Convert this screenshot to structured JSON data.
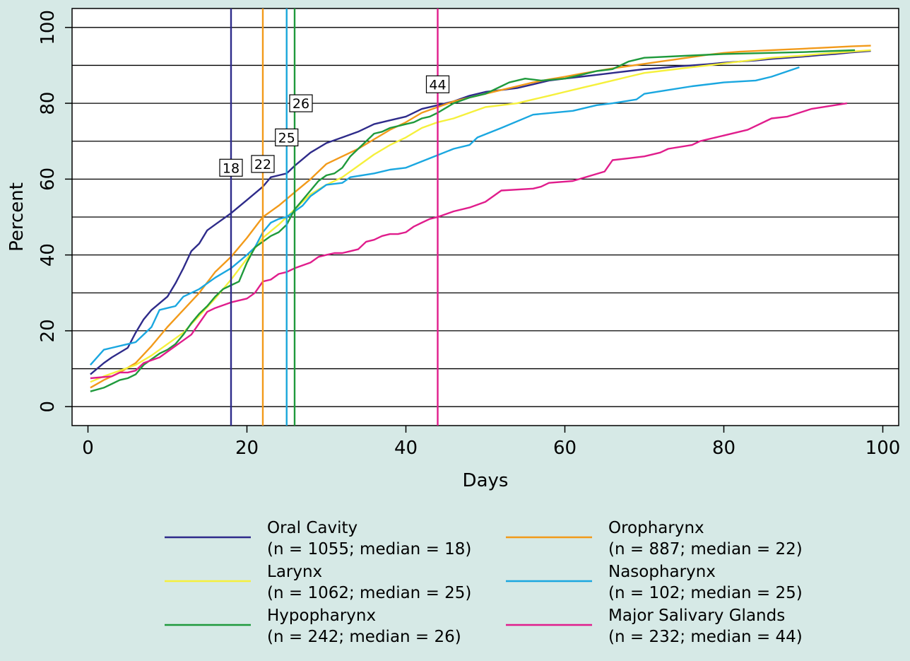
{
  "chart_data": {
    "type": "line",
    "title": "",
    "xlabel": "Days",
    "ylabel": "Percent",
    "xlim": [
      -2,
      102
    ],
    "ylim": [
      -5,
      105
    ],
    "xticks": [
      0,
      20,
      40,
      60,
      80,
      100
    ],
    "yticks": [
      0,
      20,
      40,
      60,
      80,
      100
    ],
    "hgrid": [
      0,
      10,
      20,
      30,
      40,
      50,
      60,
      70,
      80,
      90,
      100
    ],
    "colors": {
      "background": "#d6e9e6",
      "plot_background": "#ffffff"
    },
    "legend_placement": "bottom",
    "series": [
      {
        "name": "Oral Cavity",
        "detail": "(n = 1055; median = 18)",
        "median": 18,
        "median_label": "18",
        "color": "#2e2b8a",
        "x": [
          0.3,
          2,
          3,
          5,
          6,
          7,
          8,
          10,
          11,
          12,
          13,
          14,
          15,
          16,
          18,
          20,
          22,
          23,
          24,
          25,
          26,
          28,
          30,
          32,
          34,
          36,
          38,
          40,
          42,
          44,
          46,
          48,
          50,
          52,
          54,
          56,
          58,
          60,
          62,
          64,
          66,
          68,
          70,
          72,
          74,
          76,
          78,
          80,
          82,
          84,
          86,
          88,
          90,
          92,
          94,
          96,
          98.5
        ],
        "y": [
          8.5,
          11.5,
          13,
          15.5,
          19.5,
          23,
          25.5,
          29,
          32.5,
          36.5,
          41,
          43,
          46.5,
          48,
          51,
          54.5,
          58,
          60.5,
          61,
          61.5,
          63.5,
          67,
          69.5,
          71,
          72.5,
          74.5,
          75.5,
          76.5,
          78.5,
          79.5,
          80.5,
          82,
          83,
          83.5,
          84,
          85,
          86,
          86.5,
          87,
          87.5,
          88,
          88.5,
          89,
          89.3,
          89.7,
          90,
          90.3,
          90.7,
          91,
          91.3,
          91.7,
          92,
          92.3,
          92.7,
          93,
          93.4,
          93.8
        ]
      },
      {
        "name": "Oropharynx",
        "detail": "(n = 887; median = 22)",
        "median": 22,
        "median_label": "22",
        "color": "#f29a1a",
        "x": [
          0.3,
          2,
          4,
          6,
          8,
          10,
          12,
          14,
          16,
          18,
          20,
          22,
          24,
          26,
          28,
          30,
          32,
          34,
          36,
          38,
          40,
          42,
          44,
          46,
          48,
          50,
          52,
          54,
          56,
          58,
          60,
          62,
          64,
          66,
          68,
          70,
          72,
          74,
          76,
          78,
          80,
          82,
          84,
          86,
          88,
          90,
          92,
          94,
          96,
          98.5
        ],
        "y": [
          5,
          7,
          9,
          11.5,
          16,
          21,
          25.5,
          30,
          35.5,
          39.5,
          44.5,
          50,
          53,
          56.5,
          60,
          64,
          66,
          68,
          70.5,
          73,
          75,
          77.5,
          79,
          80.5,
          81.5,
          82.5,
          83.5,
          84.5,
          85.5,
          86.3,
          87,
          87.8,
          88.5,
          89.2,
          89.8,
          90.4,
          91,
          91.6,
          92.2,
          92.8,
          93.3,
          93.6,
          93.8,
          94,
          94.2,
          94.4,
          94.6,
          94.8,
          95,
          95.2
        ]
      },
      {
        "name": "Larynx",
        "detail": "(n = 1062; median = 25)",
        "median": 25,
        "median_label": "25",
        "color": "#f5f03c",
        "x": [
          0.3,
          2,
          4,
          6,
          8,
          10,
          12,
          14,
          16,
          18,
          20,
          22,
          24,
          26,
          28,
          30,
          32,
          34,
          36,
          38,
          40,
          42,
          44,
          46,
          48,
          50,
          52,
          54,
          56,
          58,
          60,
          62,
          64,
          66,
          68,
          70,
          72,
          74,
          76,
          78,
          80,
          82,
          84,
          86,
          88,
          90,
          92,
          94,
          96,
          98.5
        ],
        "y": [
          6.5,
          8,
          9.5,
          11,
          13.5,
          16.5,
          19.5,
          24,
          28.5,
          33.5,
          39,
          44.5,
          48,
          52,
          56,
          58.5,
          60.5,
          63.5,
          66.5,
          69,
          71,
          73.5,
          75,
          76,
          77.5,
          79,
          79.5,
          80,
          81,
          82,
          83,
          84,
          85,
          86,
          87,
          88,
          88.5,
          89,
          89.5,
          90,
          90.5,
          91,
          91.5,
          92,
          92.3,
          92.6,
          93,
          93.3,
          93.6,
          94
        ]
      },
      {
        "name": "Nasopharynx",
        "detail": "(n = 102; median = 25)",
        "median": 25,
        "median_label": "25",
        "color": "#1aa7e0",
        "x": [
          0.3,
          2,
          3,
          5,
          6,
          7,
          8,
          9,
          10,
          11,
          12,
          13,
          14,
          16,
          18,
          20,
          21,
          22,
          23,
          24,
          25,
          26,
          27,
          28,
          29,
          30,
          32,
          33,
          36,
          38,
          40,
          43,
          46,
          48,
          49,
          52,
          56,
          61,
          64,
          66,
          69,
          70,
          73,
          76,
          80,
          84,
          86,
          89.5
        ],
        "y": [
          11,
          15,
          15.5,
          16.5,
          17,
          19,
          21,
          25.5,
          26,
          26.5,
          29,
          30,
          31,
          34,
          36.5,
          40,
          42,
          46,
          48.5,
          49.5,
          50,
          51.5,
          53,
          55.5,
          57,
          58.5,
          59,
          60.5,
          61.5,
          62.5,
          63,
          65.5,
          68,
          69,
          71,
          73.5,
          77,
          78,
          79.5,
          80,
          81,
          82.5,
          83.5,
          84.5,
          85.5,
          86,
          87,
          89.5
        ]
      },
      {
        "name": "Hypopharynx",
        "detail": "(n = 242; median = 26)",
        "median": 26,
        "median_label": "26",
        "color": "#1f9a3c",
        "x": [
          0.3,
          2,
          3,
          4,
          5,
          6,
          7,
          8,
          9,
          10,
          11,
          12,
          13,
          14,
          15,
          16,
          17,
          18,
          19,
          20,
          21,
          22,
          23,
          24,
          25,
          26,
          27,
          28,
          29,
          30,
          31,
          32,
          33,
          34,
          35,
          36,
          37,
          38,
          39,
          40,
          41,
          42,
          43,
          44,
          46,
          48,
          50,
          52,
          53,
          55,
          57,
          60,
          62,
          64,
          66,
          68,
          70,
          75,
          80,
          90,
          96.5
        ],
        "y": [
          4,
          5,
          6,
          7,
          7.5,
          8.5,
          11,
          12.5,
          14,
          15,
          16.5,
          19,
          22,
          24.5,
          26.5,
          29,
          31,
          32,
          33,
          38,
          42,
          43.5,
          45,
          46,
          48,
          52,
          54.5,
          57,
          59.5,
          61,
          61.5,
          63,
          66,
          68,
          70,
          72,
          72.5,
          73.5,
          74,
          74.5,
          75,
          76,
          76.5,
          77.5,
          80,
          81.5,
          82.5,
          84.5,
          85.5,
          86.5,
          86,
          86.5,
          87.5,
          88.5,
          89,
          91,
          92,
          92.5,
          93,
          93.5,
          94
        ]
      },
      {
        "name": "Major Salivary Glands",
        "detail": "(n = 232; median = 44)",
        "median": 44,
        "median_label": "44",
        "color": "#e01d8c",
        "x": [
          0.3,
          3,
          4,
          5,
          6,
          7,
          9,
          11,
          13,
          14,
          15,
          16,
          18,
          20,
          21,
          22,
          23,
          24,
          25,
          26,
          28,
          29,
          30,
          31,
          32,
          33,
          34,
          35,
          36,
          37,
          38,
          39,
          40,
          41,
          42,
          43,
          44,
          46,
          48,
          50,
          52,
          56,
          57,
          58,
          61,
          65,
          66,
          68,
          70,
          72,
          73,
          76,
          77,
          78,
          80,
          83,
          86,
          88,
          91,
          95.5
        ],
        "y": [
          7.5,
          8,
          9,
          9,
          9.5,
          11.5,
          13,
          16,
          19,
          22,
          25,
          26,
          27.5,
          28.5,
          30,
          33,
          33.5,
          35,
          35.5,
          36.5,
          38,
          39.5,
          40,
          40.5,
          40.5,
          41,
          41.5,
          43.5,
          44,
          45,
          45.5,
          45.5,
          46,
          47.5,
          48.5,
          49.5,
          50,
          51.5,
          52.5,
          54,
          57,
          57.5,
          58,
          59,
          59.5,
          62,
          65,
          65.5,
          66,
          67,
          68,
          69,
          70,
          70.5,
          71.5,
          73,
          76,
          76.5,
          78.5,
          80
        ]
      }
    ]
  }
}
